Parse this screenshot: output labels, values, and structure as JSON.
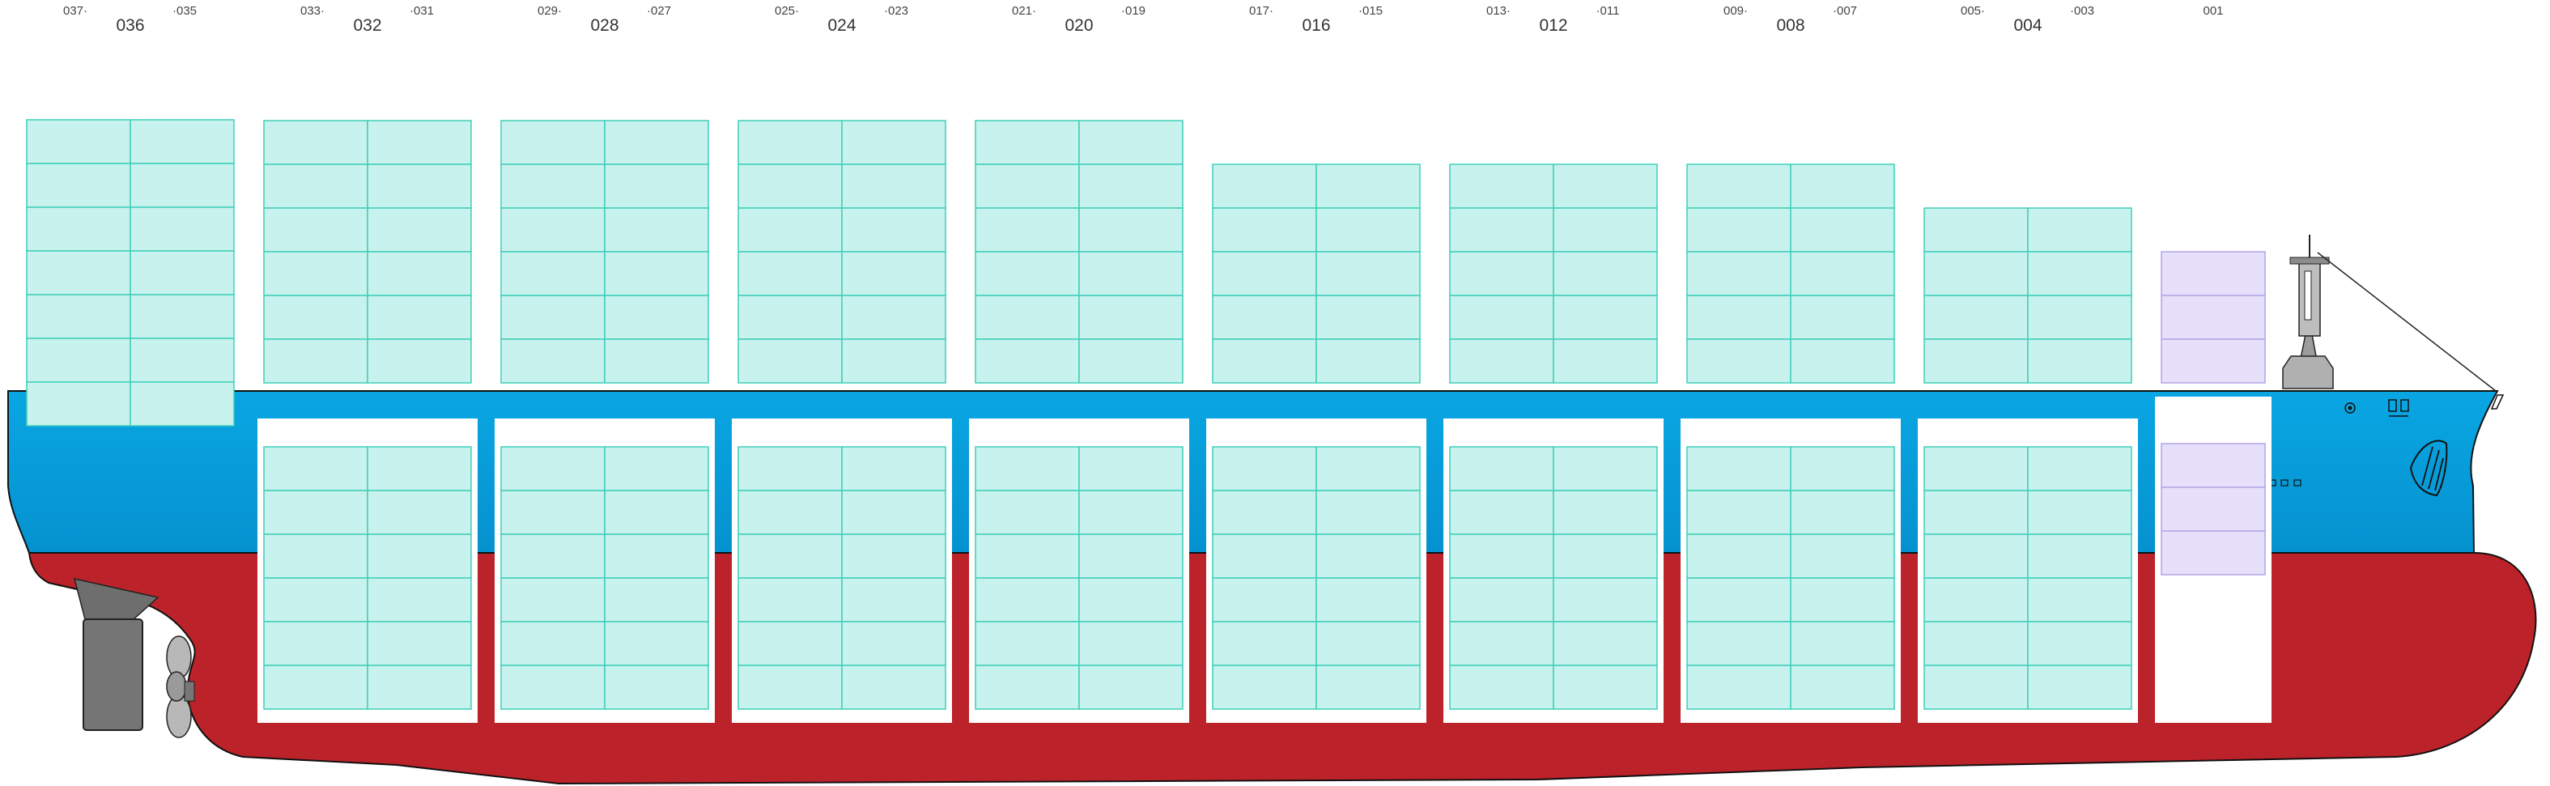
{
  "bays": [
    {
      "main": "036",
      "fwd": "037",
      "aft": "035"
    },
    {
      "main": "032",
      "fwd": "033",
      "aft": "031"
    },
    {
      "main": "028",
      "fwd": "029",
      "aft": "027"
    },
    {
      "main": "024",
      "fwd": "025",
      "aft": "023"
    },
    {
      "main": "020",
      "fwd": "021",
      "aft": "019"
    },
    {
      "main": "016",
      "fwd": "017",
      "aft": "015"
    },
    {
      "main": "012",
      "fwd": "013",
      "aft": "011"
    },
    {
      "main": "008",
      "fwd": "009",
      "aft": "007"
    },
    {
      "main": "004",
      "fwd": "005",
      "aft": "003"
    },
    {
      "main": "",
      "fwd": "",
      "aft": "001"
    }
  ],
  "stowage": {
    "deck_tiers": [
      7,
      6,
      6,
      6,
      6,
      5,
      5,
      5,
      4,
      3
    ],
    "hold_tiers": [
      0,
      6,
      6,
      6,
      6,
      6,
      6,
      6,
      6,
      3
    ]
  },
  "colors": {
    "hull_upper": "#0ba3dd",
    "hull_lower": "#bb2229",
    "container_fill": "#c8f2ee",
    "container_line": "#3fcfb9",
    "bow_container_fill": "#e6e0fb",
    "bow_container_line": "#b3a6e6"
  }
}
